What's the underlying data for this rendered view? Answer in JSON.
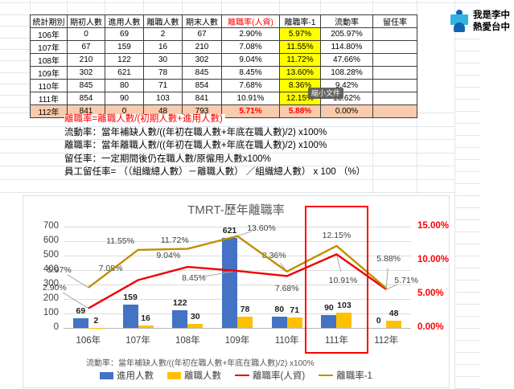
{
  "table": {
    "headers": [
      "統計期別",
      "期初人數",
      "進用人數",
      "離職人數",
      "期末人數",
      "離職率(人資)",
      "離職率-1",
      "流動率",
      "留任率"
    ],
    "rows": [
      [
        "106年",
        "0",
        "69",
        "2",
        "67",
        "2.90%",
        "5.97%",
        "205.97%",
        ""
      ],
      [
        "107年",
        "67",
        "159",
        "16",
        "210",
        "7.08%",
        "11.55%",
        "114.80%",
        ""
      ],
      [
        "108年",
        "210",
        "122",
        "30",
        "302",
        "9.04%",
        "11.72%",
        "47.66%",
        ""
      ],
      [
        "109年",
        "302",
        "621",
        "78",
        "845",
        "8.45%",
        "13.60%",
        "108.28%",
        ""
      ],
      [
        "110年",
        "845",
        "80",
        "71",
        "854",
        "7.68%",
        "8.36%",
        "9.42%",
        ""
      ],
      [
        "111年",
        "854",
        "90",
        "103",
        "841",
        "10.91%",
        "12.15%",
        "10.62%",
        ""
      ],
      [
        "112年",
        "841",
        "0",
        "48",
        "793",
        "5.71%",
        "5.88%",
        "0.00%",
        ""
      ]
    ]
  },
  "notes": {
    "red": "離職率=離職人數/(初期人數+進用人數)",
    "lines": [
      "流動率：當年補缺人數/((年初在職人數+年底在職人數)/2) x100%",
      "離職率：當年離職人數/((年初在職人數+年底在職人數)/2) x100%",
      "留任率：一定期間後仍在職人數/原僱用人數x100%",
      "員工留任率= （（組織總人數）－離職人數） ／組織總人數） x 100 （%）"
    ]
  },
  "badge": {
    "line1": "我是李中",
    "line2": "熱愛台中"
  },
  "tooltip": {
    "label": "縮小文件"
  },
  "chart_data": {
    "type": "bar",
    "subtype": "combo-bar-line-dual-axis",
    "title": "TMRT-歷年離職率",
    "categories": [
      "106年",
      "107年",
      "108年",
      "109年",
      "110年",
      "111年",
      "112年"
    ],
    "series": [
      {
        "name": "進用人數",
        "type": "bar",
        "axis": "left",
        "color": "#4472c4",
        "values": [
          69,
          159,
          122,
          621,
          80,
          90,
          0
        ]
      },
      {
        "name": "離職人數",
        "type": "bar",
        "axis": "left",
        "color": "#ffc000",
        "values": [
          2,
          16,
          30,
          78,
          71,
          103,
          48
        ]
      },
      {
        "name": "離職率(人資)",
        "type": "line",
        "axis": "right",
        "color": "#f00000",
        "values": [
          2.9,
          7.08,
          9.04,
          8.45,
          7.68,
          10.91,
          5.71
        ],
        "labels": [
          "2.90%",
          "7.08%",
          "9.04%",
          "8.45%",
          "7.68%",
          "10.91%",
          "5.71%"
        ],
        "label_offsets": [
          [
            -42,
            -26,
            1
          ],
          [
            -34,
            -15,
            0
          ],
          [
            -24,
            -14,
            0
          ],
          [
            -54,
            9,
            1
          ],
          [
            0,
            16,
            0
          ],
          [
            8,
            33,
            1
          ],
          [
            25,
            -11,
            1
          ]
        ]
      },
      {
        "name": "離職率-1",
        "type": "line",
        "axis": "right",
        "color": "#bf9000",
        "values": [
          5.97,
          11.55,
          11.72,
          13.6,
          8.36,
          12.15,
          5.88
        ],
        "labels": [
          "5.97%",
          "11.55%",
          "11.72%",
          "13.60%",
          "8.36%",
          "12.15%",
          "5.88%"
        ],
        "label_offsets": [
          [
            -36,
            -22,
            1
          ],
          [
            -22,
            -11,
            0
          ],
          [
            -16,
            -11,
            0
          ],
          [
            30,
            -10,
            1
          ],
          [
            -16,
            -20,
            1
          ],
          [
            0,
            -13,
            0
          ],
          [
            3,
            -37,
            1
          ]
        ]
      }
    ],
    "left_axis": {
      "min": 0,
      "max": 700,
      "step": 100,
      "ticks": [
        "0",
        "100",
        "200",
        "300",
        "400",
        "500",
        "600",
        "700"
      ]
    },
    "right_axis": {
      "color": "#ff0000",
      "values": [
        0,
        5,
        10,
        15
      ],
      "ticks": [
        "0.00%",
        "5.00%",
        "10.00%",
        "15.00%"
      ]
    },
    "grid": "horizontal",
    "legend_position": "bottom",
    "legend": [
      "進用人數",
      "離職人數",
      "離職率(人資)",
      "離職率-1"
    ],
    "note": "流動率：當年補缺人數/((年初在職人數+年底在職人數)/2) x100%",
    "highlight_category": "111年"
  }
}
